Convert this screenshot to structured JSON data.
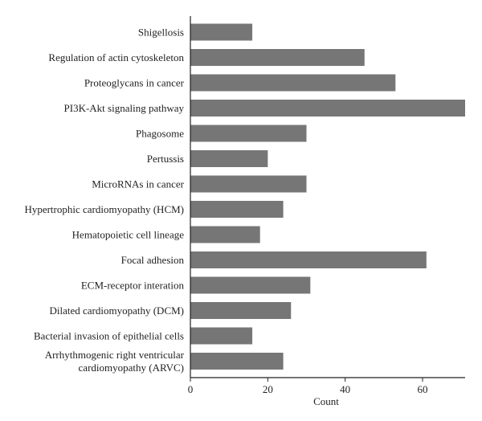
{
  "chart_data": {
    "type": "bar",
    "orientation": "horizontal",
    "categories": [
      "Shigellosis",
      "Regulation of actin cytoskeleton",
      "Proteoglycans in cancer",
      "PI3K-Akt signaling pathway",
      "Phagosome",
      "Pertussis",
      "MicroRNAs in cancer",
      "Hypertrophic cardiomyopathy (HCM)",
      "Hematopoietic cell lineage",
      "Focal adhesion",
      "ECM-receptor interation",
      "Dilated cardiomyopathy (DCM)",
      "Bacterial invasion of epithelial cells",
      "Arrhythmogenic right ventricular cardiomyopathy (ARVC)"
    ],
    "category_lines": [
      [
        "Shigellosis"
      ],
      [
        "Regulation of actin cytoskeleton"
      ],
      [
        "Proteoglycans in cancer"
      ],
      [
        "PI3K-Akt signaling pathway"
      ],
      [
        "Phagosome"
      ],
      [
        "Pertussis"
      ],
      [
        "MicroRNAs in cancer"
      ],
      [
        "Hypertrophic cardiomyopathy (HCM)"
      ],
      [
        "Hematopoietic cell lineage"
      ],
      [
        "Focal adhesion"
      ],
      [
        "ECM-receptor interation"
      ],
      [
        "Dilated cardiomyopathy (DCM)"
      ],
      [
        "Bacterial invasion of epithelial cells"
      ],
      [
        "Arrhythmogenic right ventricular",
        "cardiomyopathy (ARVC)"
      ]
    ],
    "values": [
      16,
      45,
      53,
      71,
      30,
      20,
      30,
      24,
      18,
      61,
      31,
      26,
      16,
      24
    ],
    "xlabel": "Count",
    "ylabel": "",
    "title": "",
    "xlim": [
      0,
      71
    ],
    "xticks": [
      0,
      20,
      40,
      60
    ],
    "grid": false,
    "bar_color": "#767676",
    "axis_color": "#222222"
  }
}
